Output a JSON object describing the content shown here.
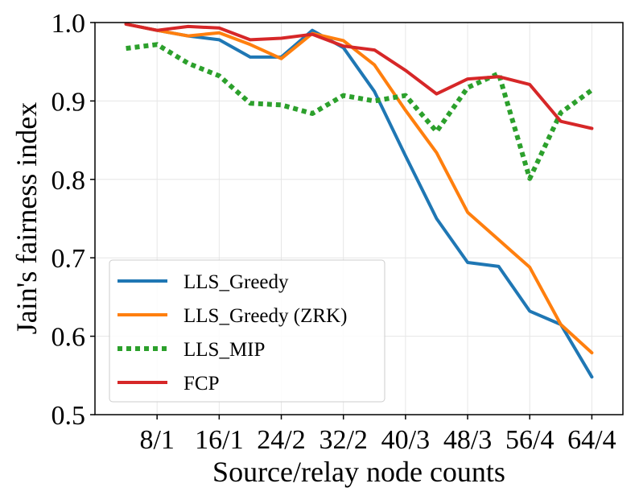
{
  "chart_data": {
    "type": "line",
    "title": "",
    "xlabel": "Source/relay node counts",
    "ylabel": "Jain's fairness index",
    "x_tick_labels": [
      "8/1",
      "16/1",
      "24/2",
      "32/2",
      "40/3",
      "48/3",
      "56/4",
      "64/4"
    ],
    "y_tick_labels": [
      "0.5",
      "0.6",
      "0.7",
      "0.8",
      "0.9",
      "1.0"
    ],
    "ylim": [
      0.5,
      1.0
    ],
    "grid": true,
    "legend_position": "lower-left",
    "x": [
      4,
      8,
      12,
      16,
      20,
      24,
      28,
      32,
      36,
      40,
      44,
      48,
      52,
      56,
      60,
      64
    ],
    "series": [
      {
        "name": "LLS_Greedy",
        "color": "#1f77b4",
        "style": "solid",
        "values": [
          0.998,
          0.99,
          0.983,
          0.978,
          0.956,
          0.956,
          0.99,
          0.968,
          0.912,
          0.83,
          0.75,
          0.694,
          0.689,
          0.632,
          0.615,
          0.548
        ]
      },
      {
        "name": "LLS_Greedy (ZRK)",
        "color": "#ff7f0e",
        "style": "solid",
        "values": [
          0.998,
          0.99,
          0.983,
          0.987,
          0.972,
          0.954,
          0.986,
          0.977,
          0.946,
          0.888,
          0.834,
          0.758,
          0.723,
          0.688,
          0.615,
          0.579
        ]
      },
      {
        "name": "LLS_MIP",
        "color": "#2ca02c",
        "style": "dotted",
        "values": [
          0.967,
          0.972,
          0.948,
          0.932,
          0.897,
          0.895,
          0.884,
          0.907,
          0.9,
          0.907,
          0.861,
          0.917,
          0.935,
          0.801,
          0.885,
          0.914
        ]
      },
      {
        "name": "FCP",
        "color": "#d62728",
        "style": "solid",
        "values": [
          0.998,
          0.99,
          0.995,
          0.993,
          0.978,
          0.98,
          0.985,
          0.97,
          0.965,
          0.939,
          0.909,
          0.928,
          0.931,
          0.921,
          0.874,
          0.865
        ]
      }
    ]
  }
}
